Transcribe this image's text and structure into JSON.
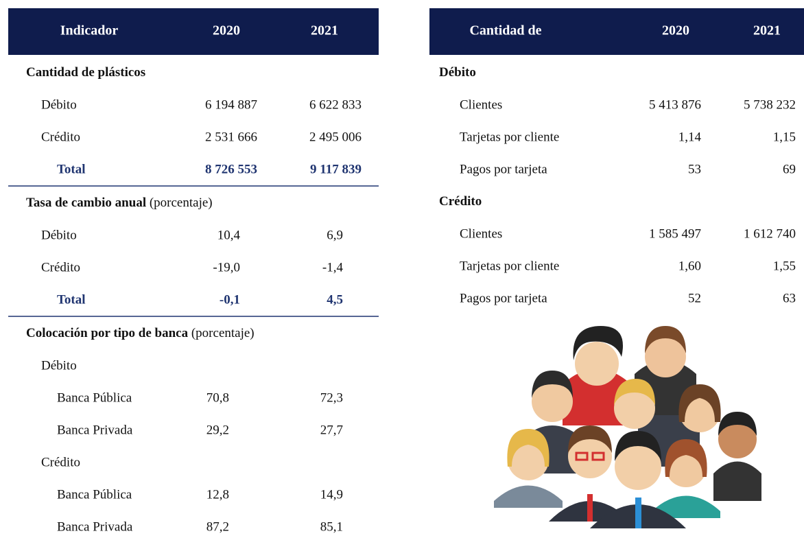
{
  "left_table": {
    "header": [
      "Indicador",
      "2020",
      "2021"
    ],
    "sections": [
      {
        "title": "Cantidad de plásticos",
        "rows": [
          {
            "label": "Débito",
            "values": [
              "6 194 887",
              "6 622 833"
            ]
          },
          {
            "label": "Crédito",
            "values": [
              "2 531 666",
              "2 495 006"
            ]
          }
        ],
        "total": {
          "label": "Total",
          "values": [
            "8 726 553",
            "9 117 839"
          ]
        }
      },
      {
        "title": "Tasa de cambio anual",
        "unit": "(porcentaje)",
        "rows": [
          {
            "label": "Débito",
            "values": [
              "10,4",
              "6,9"
            ]
          },
          {
            "label": "Crédito",
            "values": [
              "-19,0",
              "-1,4"
            ]
          }
        ],
        "total": {
          "label": "Total",
          "values": [
            "-0,1",
            "4,5"
          ]
        }
      },
      {
        "title": "Colocación por tipo de banca",
        "unit": "(porcentaje)",
        "groups": [
          {
            "label": "Débito",
            "rows": [
              {
                "label": "Banca Pública",
                "values": [
                  "70,8",
                  "72,3"
                ]
              },
              {
                "label": "Banca Privada",
                "values": [
                  "29,2",
                  "27,7"
                ]
              }
            ]
          },
          {
            "label": "Crédito",
            "rows": [
              {
                "label": "Banca Pública",
                "values": [
                  "12,8",
                  "14,9"
                ]
              },
              {
                "label": "Banca Privada",
                "values": [
                  "87,2",
                  "85,1"
                ]
              }
            ]
          }
        ]
      }
    ]
  },
  "right_table": {
    "header": [
      "Cantidad de",
      "2020",
      "2021"
    ],
    "sections": [
      {
        "title": "Débito",
        "rows": [
          {
            "label": "Clientes",
            "values": [
              "5 413 876",
              "5 738 232"
            ]
          },
          {
            "label": "Tarjetas por cliente",
            "values": [
              "1,14",
              "1,15"
            ]
          },
          {
            "label": "Pagos por tarjeta",
            "values": [
              "53",
              "69"
            ]
          }
        ]
      },
      {
        "title": "Crédito",
        "rows": [
          {
            "label": "Clientes",
            "values": [
              "1 585 497",
              "1 612 740"
            ]
          },
          {
            "label": "Tarjetas por cliente",
            "values": [
              "1,60",
              "1,55"
            ]
          },
          {
            "label": "Pagos por tarjeta",
            "values": [
              "52",
              "63"
            ]
          }
        ]
      }
    ]
  }
}
